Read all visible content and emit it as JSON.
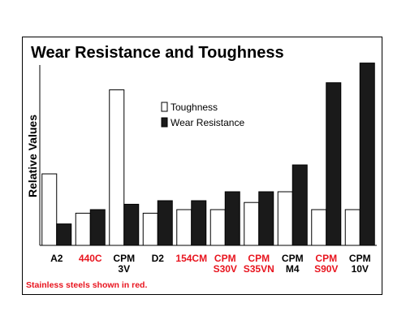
{
  "chart_data": {
    "type": "bar",
    "title": "Wear Resistance and Toughness",
    "xlabel": "",
    "ylabel": "Relative Values",
    "ylim": [
      0,
      100
    ],
    "grid": false,
    "legend_position": "top-center",
    "categories": [
      {
        "lines": [
          "A2"
        ],
        "stainless": false
      },
      {
        "lines": [
          "440C"
        ],
        "stainless": true
      },
      {
        "lines": [
          "CPM",
          "3V"
        ],
        "stainless": false
      },
      {
        "lines": [
          "D2"
        ],
        "stainless": false
      },
      {
        "lines": [
          "154CM"
        ],
        "stainless": true
      },
      {
        "lines": [
          "CPM",
          "S30V"
        ],
        "stainless": true
      },
      {
        "lines": [
          "CPM",
          "S35VN"
        ],
        "stainless": true
      },
      {
        "lines": [
          "CPM",
          "M4"
        ],
        "stainless": false
      },
      {
        "lines": [
          "CPM",
          "S90V"
        ],
        "stainless": true
      },
      {
        "lines": [
          "CPM",
          "10V"
        ],
        "stainless": false
      }
    ],
    "series": [
      {
        "name": "Toughness",
        "fill": "#ffffff",
        "values": [
          40,
          18,
          87,
          18,
          20,
          20,
          24,
          30,
          20,
          20
        ]
      },
      {
        "name": "Wear Resistance",
        "fill": "#1a1a1a",
        "values": [
          12,
          20,
          23,
          25,
          25,
          30,
          30,
          45,
          91,
          102
        ]
      }
    ],
    "footnote": "Stainless steels shown in red.",
    "colors": {
      "stainless": "#e8141e",
      "regular": "#000000",
      "axis": "#000000"
    }
  }
}
